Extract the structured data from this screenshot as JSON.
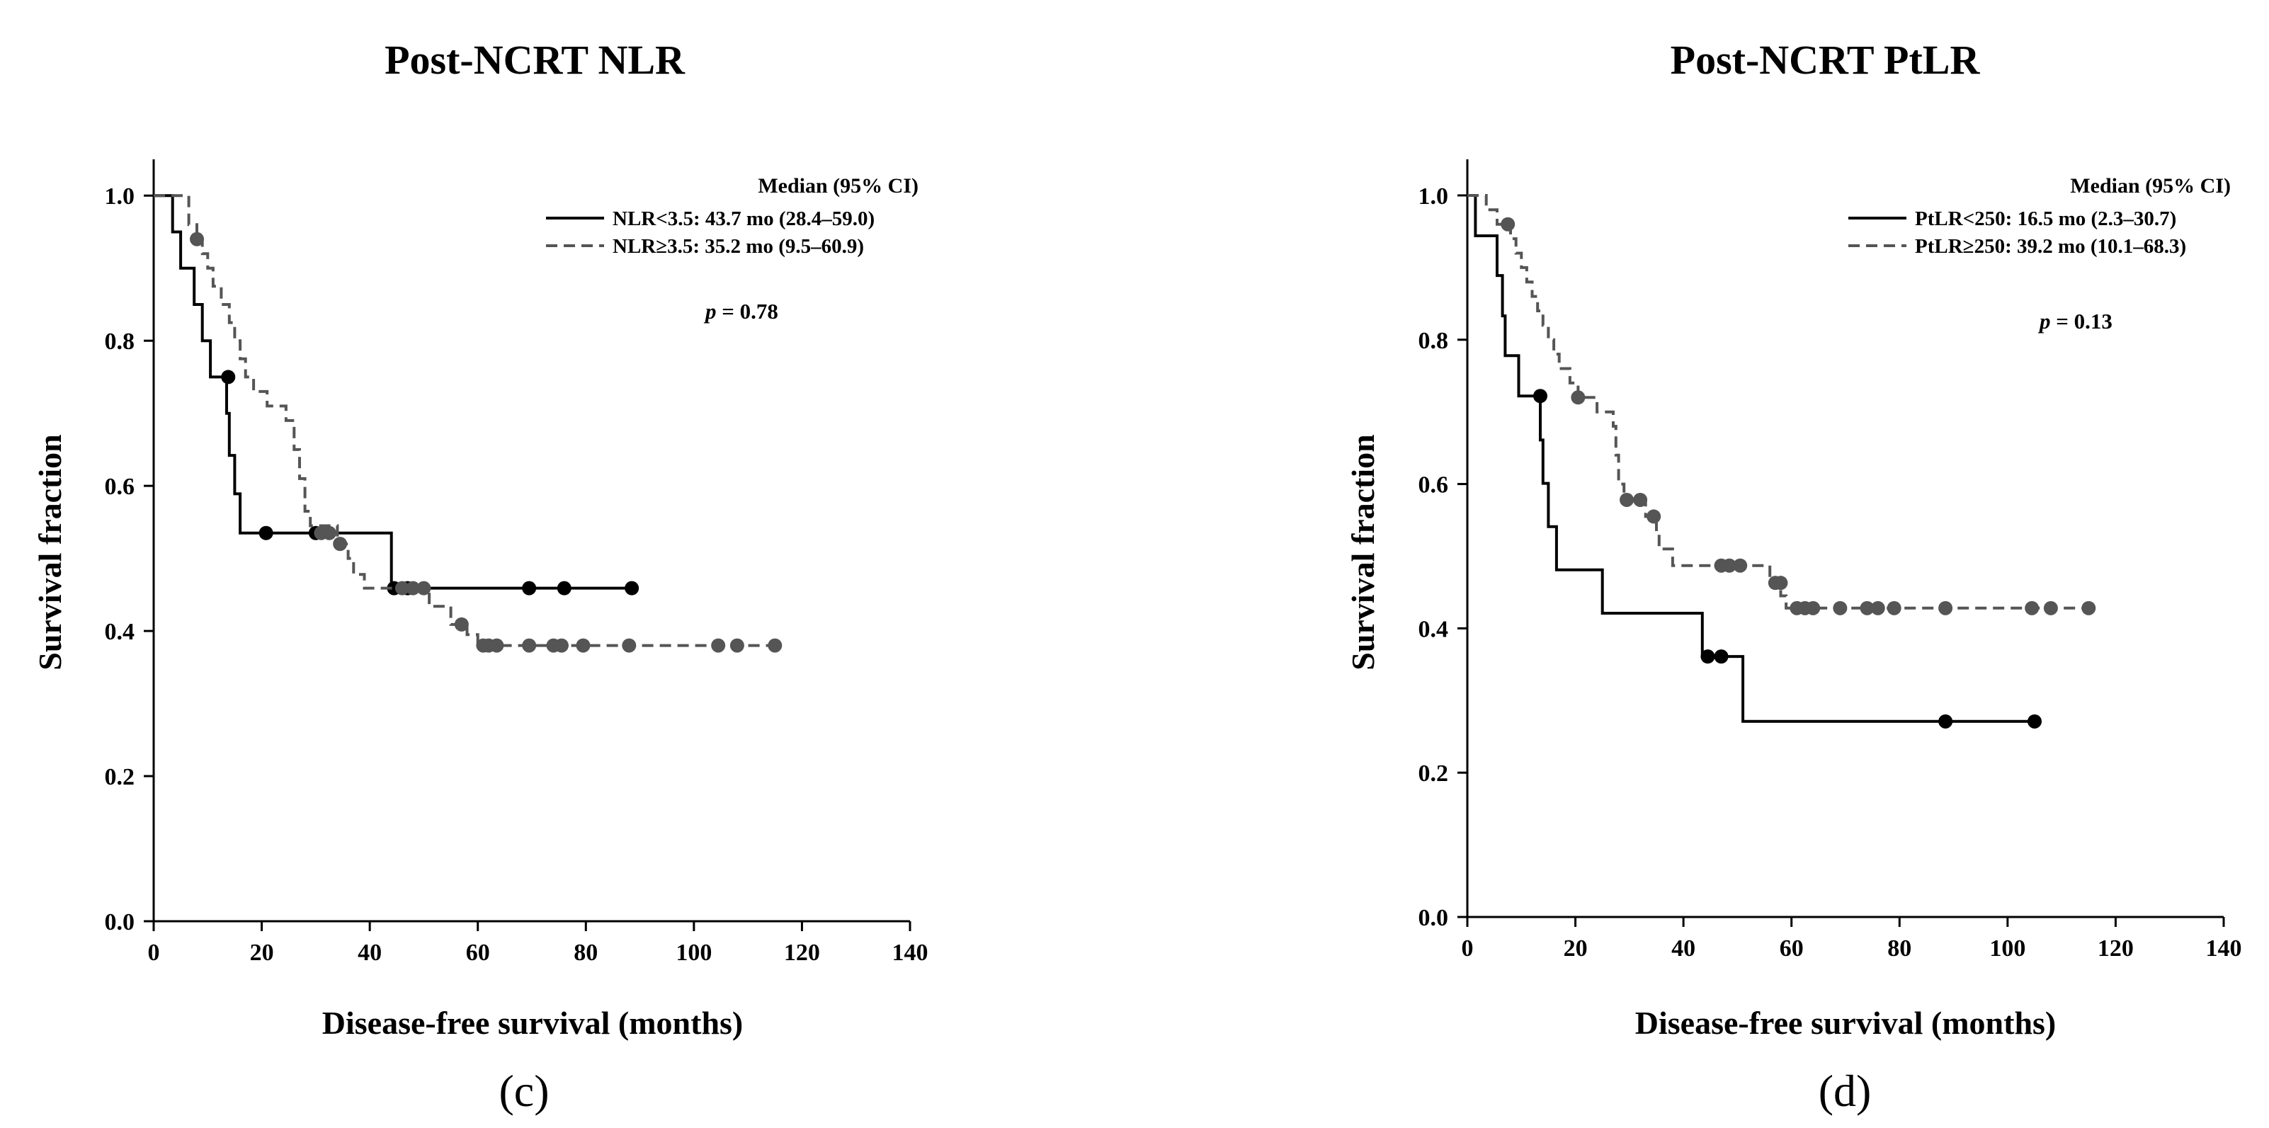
{
  "figure": {
    "panels": [
      "c",
      "d"
    ]
  },
  "chart_data": [
    {
      "type": "line",
      "subtype": "kaplan-meier",
      "panel_label": "(c)",
      "title": "Post-NCRT NLR",
      "xlabel": "Disease-free survival (months)",
      "ylabel": "Survival fraction",
      "xlim": [
        0,
        140
      ],
      "ylim": [
        0,
        1.05
      ],
      "xticks": [
        0,
        20,
        40,
        60,
        80,
        100,
        120,
        140
      ],
      "yticks": [
        0.0,
        0.2,
        0.4,
        0.6,
        0.8,
        1.0
      ],
      "legend_title": "Median (95% CI)",
      "legend_position": "top-right",
      "p_prefix": "p",
      "p_suffix": " = 0.78",
      "series": [
        {
          "name": "NLR<3.5: 43.7 mo (28.4–59.0)",
          "style": "solid",
          "color": "#000000",
          "steps": [
            [
              0,
              1.0
            ],
            [
              3.5,
              1.0
            ],
            [
              3.5,
              0.95
            ],
            [
              5,
              0.95
            ],
            [
              5,
              0.9
            ],
            [
              7.5,
              0.9
            ],
            [
              7.5,
              0.85
            ],
            [
              9,
              0.85
            ],
            [
              9,
              0.8
            ],
            [
              10.5,
              0.8
            ],
            [
              10.5,
              0.75
            ],
            [
              13.5,
              0.75
            ],
            [
              13.5,
              0.7
            ],
            [
              14,
              0.7
            ],
            [
              14,
              0.642
            ],
            [
              15,
              0.642
            ],
            [
              15,
              0.589
            ],
            [
              16,
              0.589
            ],
            [
              16,
              0.535
            ],
            [
              44,
              0.535
            ],
            [
              44,
              0.459
            ],
            [
              88.5,
              0.459
            ]
          ],
          "censored": [
            [
              13.8,
              0.75
            ],
            [
              20.8,
              0.535
            ],
            [
              30,
              0.535
            ],
            [
              44.5,
              0.459
            ],
            [
              47,
              0.459
            ],
            [
              69.5,
              0.459
            ],
            [
              76,
              0.459
            ],
            [
              88.5,
              0.459
            ]
          ]
        },
        {
          "name": "NLR≥3.5: 35.2 mo (9.5–60.9)",
          "style": "dashed",
          "color": "#555555",
          "steps": [
            [
              0,
              1.0
            ],
            [
              6.5,
              1.0
            ],
            [
              6.5,
              0.96
            ],
            [
              8,
              0.96
            ],
            [
              8,
              0.94
            ],
            [
              9,
              0.94
            ],
            [
              9,
              0.92
            ],
            [
              10,
              0.92
            ],
            [
              10,
              0.9
            ],
            [
              11,
              0.9
            ],
            [
              11,
              0.875
            ],
            [
              12.5,
              0.875
            ],
            [
              12.5,
              0.85
            ],
            [
              14,
              0.85
            ],
            [
              14,
              0.825
            ],
            [
              15,
              0.825
            ],
            [
              15,
              0.8
            ],
            [
              16,
              0.8
            ],
            [
              16,
              0.775
            ],
            [
              17,
              0.775
            ],
            [
              17,
              0.75
            ],
            [
              18.5,
              0.75
            ],
            [
              18.5,
              0.73
            ],
            [
              21,
              0.73
            ],
            [
              21,
              0.71
            ],
            [
              24.5,
              0.71
            ],
            [
              24.5,
              0.69
            ],
            [
              26,
              0.69
            ],
            [
              26,
              0.65
            ],
            [
              27,
              0.65
            ],
            [
              27,
              0.61
            ],
            [
              28,
              0.61
            ],
            [
              28,
              0.565
            ],
            [
              29,
              0.565
            ],
            [
              29,
              0.545
            ],
            [
              34,
              0.545
            ],
            [
              34,
              0.52
            ],
            [
              36,
              0.52
            ],
            [
              36,
              0.5
            ],
            [
              37,
              0.5
            ],
            [
              37,
              0.478
            ],
            [
              39,
              0.478
            ],
            [
              39,
              0.459
            ],
            [
              51,
              0.459
            ],
            [
              51,
              0.434
            ],
            [
              55,
              0.434
            ],
            [
              55,
              0.409
            ],
            [
              58,
              0.409
            ],
            [
              58,
              0.395
            ],
            [
              60,
              0.395
            ],
            [
              60,
              0.38
            ],
            [
              115,
              0.38
            ]
          ],
          "censored": [
            [
              8,
              0.94
            ],
            [
              31,
              0.535
            ],
            [
              32.5,
              0.535
            ],
            [
              34.5,
              0.52
            ],
            [
              46,
              0.459
            ],
            [
              48,
              0.459
            ],
            [
              50,
              0.459
            ],
            [
              57,
              0.409
            ],
            [
              61,
              0.38
            ],
            [
              62,
              0.38
            ],
            [
              63.5,
              0.38
            ],
            [
              69.5,
              0.38
            ],
            [
              74,
              0.38
            ],
            [
              75.5,
              0.38
            ],
            [
              79.5,
              0.38
            ],
            [
              88,
              0.38
            ],
            [
              104.5,
              0.38
            ],
            [
              108,
              0.38
            ],
            [
              115,
              0.38
            ]
          ]
        }
      ]
    },
    {
      "type": "line",
      "subtype": "kaplan-meier",
      "panel_label": "(d)",
      "title": "Post-NCRT PtLR",
      "xlabel": "Disease-free survival (months)",
      "ylabel": "Survival fraction",
      "xlim": [
        0,
        140
      ],
      "ylim": [
        0,
        1.05
      ],
      "xticks": [
        0,
        20,
        40,
        60,
        80,
        100,
        120,
        140
      ],
      "yticks": [
        0.0,
        0.2,
        0.4,
        0.6,
        0.8,
        1.0
      ],
      "legend_title": "Median (95% CI)",
      "legend_position": "top-right",
      "p_prefix": "p",
      "p_suffix": " = 0.13",
      "series": [
        {
          "name": "PtLR<250: 16.5 mo (2.3–30.7)",
          "style": "solid",
          "color": "#000000",
          "steps": [
            [
              0,
              1.0
            ],
            [
              1.5,
              1.0
            ],
            [
              1.5,
              0.944
            ],
            [
              5.5,
              0.944
            ],
            [
              5.5,
              0.889
            ],
            [
              6.5,
              0.889
            ],
            [
              6.5,
              0.833
            ],
            [
              7,
              0.833
            ],
            [
              7,
              0.778
            ],
            [
              9.5,
              0.778
            ],
            [
              9.5,
              0.722
            ],
            [
              13.5,
              0.722
            ],
            [
              13.5,
              0.661
            ],
            [
              14,
              0.661
            ],
            [
              14,
              0.601
            ],
            [
              15,
              0.601
            ],
            [
              15,
              0.541
            ],
            [
              16.5,
              0.541
            ],
            [
              16.5,
              0.481
            ],
            [
              25,
              0.481
            ],
            [
              25,
              0.421
            ],
            [
              43.5,
              0.421
            ],
            [
              43.5,
              0.361
            ],
            [
              51,
              0.361
            ],
            [
              51,
              0.271
            ],
            [
              105,
              0.271
            ]
          ],
          "censored": [
            [
              13.5,
              0.722
            ],
            [
              44.5,
              0.361
            ],
            [
              47,
              0.361
            ],
            [
              88.5,
              0.271
            ],
            [
              105,
              0.271
            ]
          ]
        },
        {
          "name": "PtLR≥250: 39.2 mo (10.1–68.3)",
          "style": "dashed",
          "color": "#555555",
          "steps": [
            [
              0,
              1.0
            ],
            [
              3.5,
              1.0
            ],
            [
              3.5,
              0.98
            ],
            [
              5.5,
              0.98
            ],
            [
              5.5,
              0.96
            ],
            [
              8,
              0.96
            ],
            [
              8,
              0.94
            ],
            [
              9,
              0.94
            ],
            [
              9,
              0.92
            ],
            [
              10,
              0.92
            ],
            [
              10,
              0.9
            ],
            [
              11,
              0.9
            ],
            [
              11,
              0.88
            ],
            [
              12,
              0.88
            ],
            [
              12,
              0.86
            ],
            [
              13,
              0.86
            ],
            [
              13,
              0.84
            ],
            [
              14,
              0.84
            ],
            [
              14,
              0.82
            ],
            [
              15,
              0.82
            ],
            [
              15,
              0.8
            ],
            [
              16,
              0.8
            ],
            [
              16,
              0.78
            ],
            [
              17,
              0.78
            ],
            [
              17,
              0.76
            ],
            [
              19,
              0.76
            ],
            [
              19,
              0.74
            ],
            [
              20.5,
              0.74
            ],
            [
              20.5,
              0.72
            ],
            [
              24,
              0.72
            ],
            [
              24,
              0.7
            ],
            [
              27,
              0.7
            ],
            [
              27,
              0.68
            ],
            [
              27.5,
              0.68
            ],
            [
              27.5,
              0.64
            ],
            [
              28,
              0.64
            ],
            [
              28,
              0.6
            ],
            [
              29,
              0.6
            ],
            [
              29,
              0.578
            ],
            [
              33,
              0.578
            ],
            [
              33,
              0.555
            ],
            [
              35,
              0.555
            ],
            [
              35,
              0.532
            ],
            [
              35.5,
              0.532
            ],
            [
              35.5,
              0.51
            ],
            [
              38,
              0.51
            ],
            [
              38,
              0.487
            ],
            [
              56,
              0.487
            ],
            [
              56,
              0.463
            ],
            [
              58,
              0.463
            ],
            [
              58,
              0.445
            ],
            [
              59,
              0.445
            ],
            [
              59,
              0.428
            ],
            [
              115,
              0.428
            ]
          ],
          "censored": [
            [
              7.5,
              0.96
            ],
            [
              20.5,
              0.72
            ],
            [
              29.5,
              0.578
            ],
            [
              32,
              0.578
            ],
            [
              34.5,
              0.555
            ],
            [
              47,
              0.487
            ],
            [
              48.5,
              0.487
            ],
            [
              50.5,
              0.487
            ],
            [
              57,
              0.463
            ],
            [
              58,
              0.463
            ],
            [
              61,
              0.428
            ],
            [
              62.5,
              0.428
            ],
            [
              64,
              0.428
            ],
            [
              69,
              0.428
            ],
            [
              74,
              0.428
            ],
            [
              76,
              0.428
            ],
            [
              79,
              0.428
            ],
            [
              88.5,
              0.428
            ],
            [
              104.5,
              0.428
            ],
            [
              108,
              0.428
            ],
            [
              115,
              0.428
            ]
          ]
        }
      ]
    }
  ]
}
